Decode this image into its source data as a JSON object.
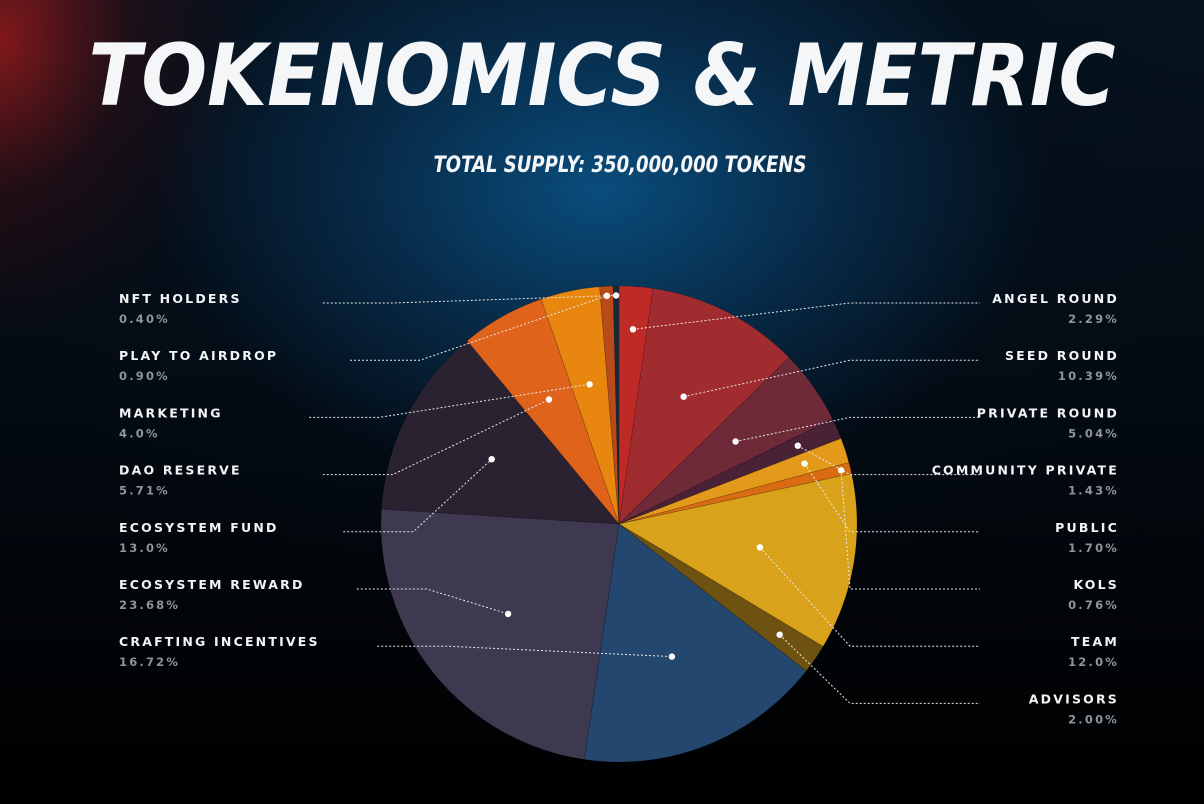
{
  "header": {
    "title": "TOKENOMICS & METRIC",
    "subtitle": "TOTAL SUPPLY: 350,000,000 TOKENS"
  },
  "chart_data": {
    "type": "pie",
    "title": "TOKENOMICS & METRIC",
    "subtitle": "TOTAL SUPPLY: 350,000,000 TOKENS",
    "slices": [
      {
        "label": "ANGEL ROUND",
        "display": "2.29%",
        "value": 2.29,
        "color": "#bf2a26"
      },
      {
        "label": "SEED ROUND",
        "display": "10.39%",
        "value": 10.39,
        "color": "#a12c2f"
      },
      {
        "label": "PRIVATE ROUND",
        "display": "5.04%",
        "value": 5.04,
        "color": "#6e2a38"
      },
      {
        "label": "COMMUNITY PRIVATE",
        "display": "1.43%",
        "value": 1.43,
        "color": "#4a2236"
      },
      {
        "label": "PUBLIC",
        "display": "1.70%",
        "value": 1.7,
        "color": "#e39a1a"
      },
      {
        "label": "KOLS",
        "display": "0.76%",
        "value": 0.76,
        "color": "#d96b12"
      },
      {
        "label": "TEAM",
        "display": "12.0%",
        "value": 12.0,
        "color": "#d8a31a"
      },
      {
        "label": "ADVISORS",
        "display": "2.00%",
        "value": 2.0,
        "color": "#6e5210"
      },
      {
        "label": "CRAFTING INCENTIVES",
        "display": "16.72%",
        "value": 16.72,
        "color": "#23476e"
      },
      {
        "label": "ECOSYSTEM REWARD",
        "display": "23.68%",
        "value": 23.68,
        "color": "#3e3850"
      },
      {
        "label": "ECOSYSTEM FUND",
        "display": "13.0%",
        "value": 13.0,
        "color": "#2a2230"
      },
      {
        "label": "DAO RESERVE",
        "display": "5.71%",
        "value": 5.71,
        "color": "#e0631c"
      },
      {
        "label": "MARKETING",
        "display": "4.0%",
        "value": 4.0,
        "color": "#e8860f"
      },
      {
        "label": "PLAY TO AIRDROP",
        "display": "0.90%",
        "value": 0.9,
        "color": "#b94a1a"
      },
      {
        "label": "NFT HOLDERS",
        "display": "0.40%",
        "value": 0.4,
        "color": "#1d2836"
      }
    ]
  }
}
